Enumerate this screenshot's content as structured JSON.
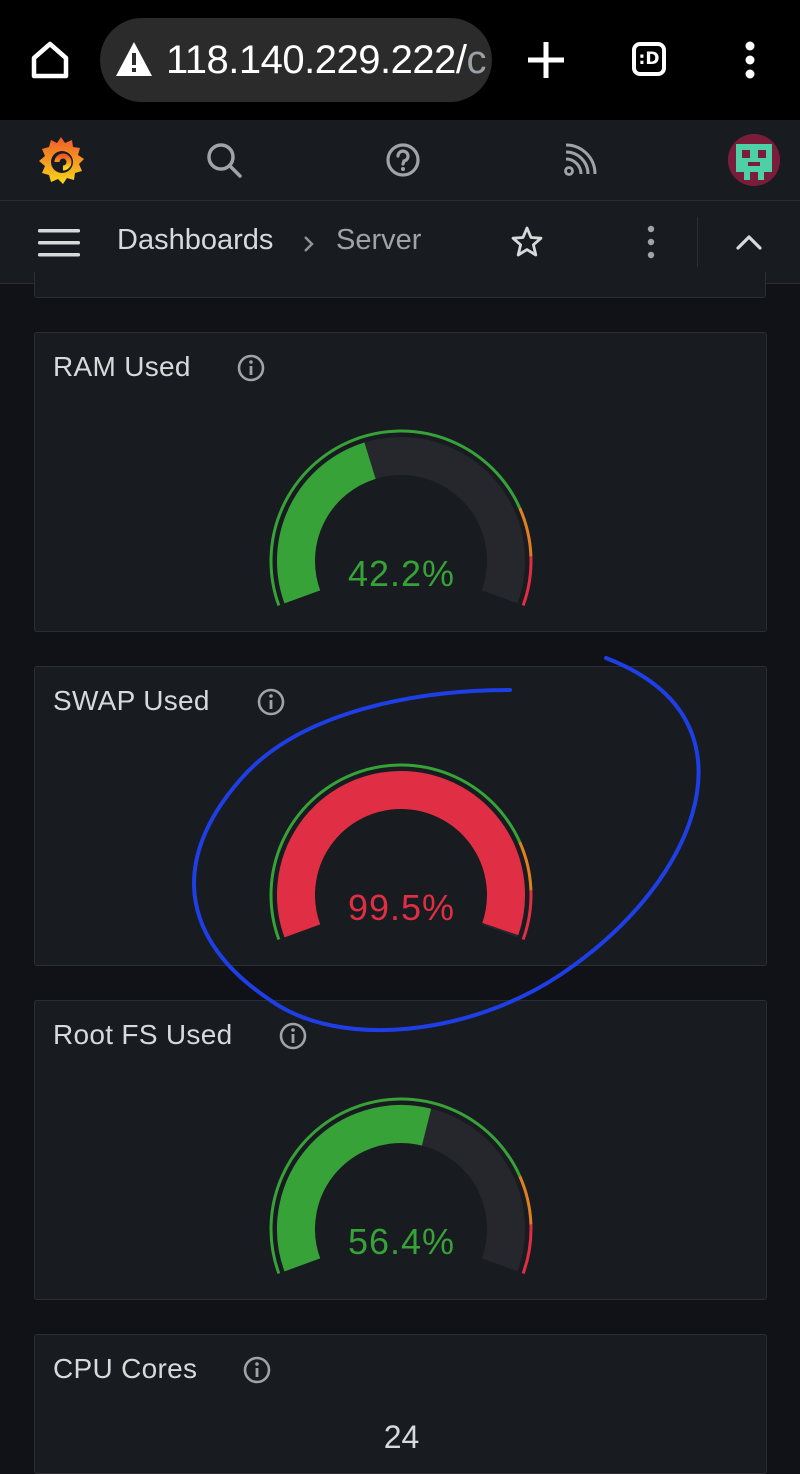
{
  "browser": {
    "url_main": "118.140.229.222/",
    "url_dim": "c",
    "tabs_label": ":D"
  },
  "breadcrumb": {
    "root": "Dashboards",
    "current": "Server"
  },
  "panels": [
    {
      "title": "RAM Used",
      "value_text": "42.2%",
      "value": 42.2,
      "color": "#37a238"
    },
    {
      "title": "SWAP Used",
      "value_text": "99.5%",
      "value": 99.5,
      "color": "#e02f44"
    },
    {
      "title": "Root FS Used",
      "value_text": "56.4%",
      "value": 56.4,
      "color": "#37a238"
    },
    {
      "title": "CPU Cores",
      "value_text": "24"
    }
  ],
  "colors": {
    "ok": "#37a238",
    "warn": "#e07f22",
    "critical": "#e02f44",
    "gauge_track": "#25272c",
    "annotation": "#1f3fe6"
  }
}
